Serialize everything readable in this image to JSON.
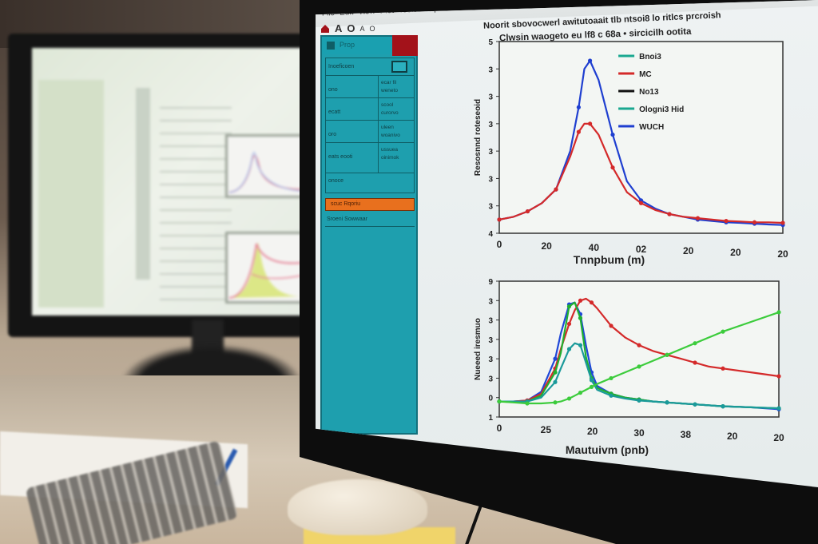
{
  "scene": {
    "description": "Photo of a desk with two monitors showing a scientific plotting application",
    "background_monitor": {
      "content": "blurred data list with two small line plots"
    },
    "desk_items": [
      "papers",
      "blue pen",
      "keypad",
      "mouse",
      "sticky notes"
    ]
  },
  "app": {
    "menu": [
      "File",
      "Edit",
      "View",
      "Plot",
      "Tools",
      "Help"
    ],
    "toolbar": [
      "A",
      "O",
      "A",
      "O"
    ],
    "chart_header_line1": "Noorit sbovocwerl awitutoaait tlb ntsoi8 lo ritlcs prcroish",
    "chart_header_line2": "Clwsin waogeto eu lf8 c 68a • sircicilh ootita"
  },
  "panel": {
    "title": "Prop",
    "top_label": "Inoeficoen",
    "button_label": "...",
    "rows": [
      {
        "key": "ono",
        "value": "ecar fil\nweneto"
      },
      {
        "key": "ecatt",
        "value": "scool\ncurorvo"
      },
      {
        "key": "oro",
        "value": "uleen\nwoanivo"
      },
      {
        "key": "eats eooti",
        "value": "ussuea\noinimok"
      }
    ],
    "footer": "onoce",
    "orange_button": "scuc Rqoriu",
    "checkbox_label": "Sroeni Sowwaar",
    "accent_color": "#1e9fae",
    "orange_color": "#e8701e",
    "close_color": "#a3121a"
  },
  "chart_data": [
    {
      "type": "line",
      "title": "Noorit sbovocwerl awitutoaait tlb ntsoi8 lo ritlcs prcroish",
      "subtitle": "Clwsin waogeto eu lf8 c 68a • sircicilh ootita",
      "xlabel": "Tnnpbum (m)",
      "ylabel": "Resosnnd roteseoid",
      "x_ticks": [
        "0",
        "20",
        "40",
        "02",
        "20",
        "20",
        "20"
      ],
      "y_ticks": [
        "4",
        "3",
        "3",
        "3",
        "3",
        "3",
        "3",
        "5"
      ],
      "legend": [
        "Bnoi3",
        "MC",
        "No13",
        "Ologni3 Hid",
        "WUCH"
      ],
      "legend_position": "upper-right",
      "grid": false,
      "x": [
        0,
        5,
        10,
        15,
        20,
        25,
        28,
        30,
        32,
        35,
        40,
        45,
        50,
        55,
        60,
        65,
        70,
        75,
        80,
        85,
        90,
        95,
        100
      ],
      "series": [
        {
          "name": "WUCH",
          "color": "#1f3fd0",
          "values": [
            0.5,
            0.6,
            0.8,
            1.1,
            1.6,
            3.0,
            4.6,
            6.0,
            6.3,
            5.6,
            3.6,
            1.9,
            1.2,
            0.9,
            0.7,
            0.6,
            0.5,
            0.45,
            0.4,
            0.38,
            0.35,
            0.32,
            0.3
          ]
        },
        {
          "name": "MC",
          "color": "#d42a2a",
          "values": [
            0.5,
            0.6,
            0.8,
            1.1,
            1.6,
            2.8,
            3.7,
            4.0,
            4.0,
            3.6,
            2.4,
            1.5,
            1.1,
            0.85,
            0.7,
            0.6,
            0.55,
            0.5,
            0.45,
            0.43,
            0.4,
            0.4,
            0.38
          ]
        }
      ],
      "ylim": [
        0,
        7
      ],
      "xlim": [
        0,
        100
      ]
    },
    {
      "type": "line",
      "title": "",
      "xlabel": "Mautuivm (pnb)",
      "ylabel": "Nueeed iresmuo",
      "x_ticks": [
        "0",
        "25",
        "20",
        "30",
        "38",
        "20",
        "20"
      ],
      "y_ticks": [
        "1",
        "0",
        "3",
        "3",
        "3",
        "3",
        "3",
        "9"
      ],
      "grid": false,
      "x": [
        0,
        5,
        10,
        15,
        20,
        22,
        25,
        27,
        29,
        31,
        33,
        35,
        40,
        45,
        50,
        55,
        60,
        65,
        70,
        75,
        80,
        90,
        100
      ],
      "series": [
        {
          "name": "blue",
          "color": "#1f47d8",
          "values": [
            0.3,
            0.3,
            0.35,
            0.8,
            2.5,
            3.8,
            5.3,
            5.4,
            4.8,
            3.2,
            1.8,
            1.1,
            0.7,
            0.5,
            0.4,
            0.3,
            0.25,
            0.2,
            0.15,
            0.1,
            0.05,
            0.0,
            -0.1
          ]
        },
        {
          "name": "red",
          "color": "#d42a2a",
          "values": [
            0.3,
            0.3,
            0.35,
            0.7,
            2.0,
            3.0,
            4.3,
            5.0,
            5.5,
            5.6,
            5.4,
            5.1,
            4.2,
            3.6,
            3.2,
            2.9,
            2.7,
            2.5,
            2.3,
            2.1,
            2.0,
            1.8,
            1.6
          ]
        },
        {
          "name": "green-peak",
          "color": "#20b030",
          "values": [
            0.3,
            0.3,
            0.3,
            0.6,
            1.8,
            2.8,
            5.2,
            5.4,
            4.6,
            2.6,
            1.5,
            1.0,
            0.7,
            0.5,
            0.4,
            0.3,
            0.25,
            0.2,
            0.15,
            0.1,
            0.05,
            0.0,
            -0.05
          ]
        },
        {
          "name": "teal",
          "color": "#1a9a9a",
          "values": [
            0.3,
            0.3,
            0.3,
            0.5,
            1.3,
            2.0,
            3.0,
            3.3,
            3.2,
            2.3,
            1.4,
            0.9,
            0.6,
            0.45,
            0.35,
            0.3,
            0.25,
            0.2,
            0.15,
            0.1,
            0.05,
            0.0,
            -0.05
          ]
        },
        {
          "name": "green-rise",
          "color": "#3ccc3c",
          "values": [
            0.3,
            0.25,
            0.2,
            0.2,
            0.25,
            0.3,
            0.45,
            0.6,
            0.75,
            0.9,
            1.05,
            1.2,
            1.5,
            1.8,
            2.1,
            2.4,
            2.7,
            3.0,
            3.3,
            3.6,
            3.9,
            4.4,
            4.9
          ]
        }
      ],
      "ylim": [
        -0.5,
        6.5
      ],
      "xlim": [
        0,
        100
      ]
    }
  ]
}
